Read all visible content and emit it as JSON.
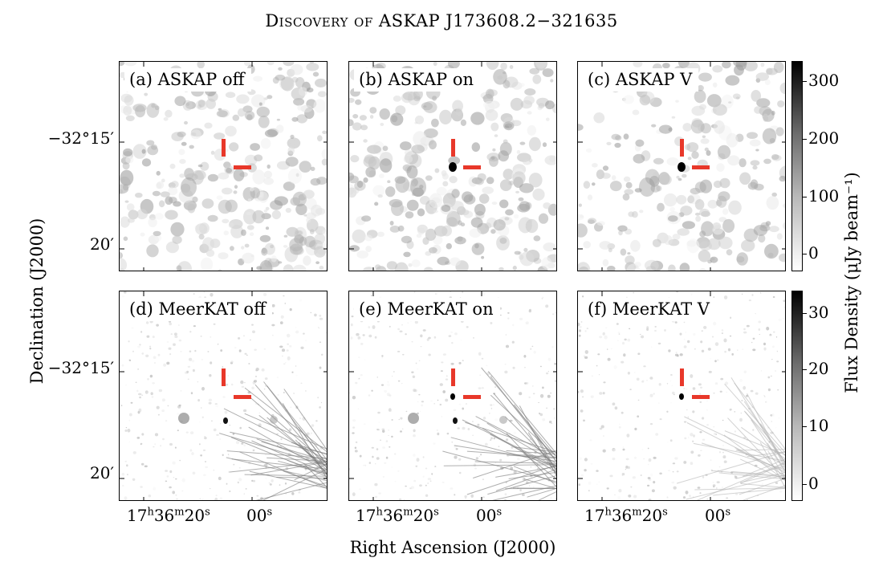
{
  "title": "Discovery of ASKAP J173608.2−321635",
  "panels": [
    {
      "label": "(a) ASKAP off",
      "survey": "ASKAP",
      "mode": "off"
    },
    {
      "label": "(b) ASKAP on",
      "survey": "ASKAP",
      "mode": "on"
    },
    {
      "label": "(c) ASKAP V",
      "survey": "ASKAP",
      "mode": "V"
    },
    {
      "label": "(d) MeerKAT off",
      "survey": "MeerKAT",
      "mode": "off"
    },
    {
      "label": "(e) MeerKAT on",
      "survey": "MeerKAT",
      "mode": "on"
    },
    {
      "label": "(f) MeerKAT V",
      "survey": "MeerKAT",
      "mode": "V"
    }
  ],
  "y_axis": {
    "title": "Declination (J2000)",
    "ticks": [
      "−32°15′",
      "20′"
    ]
  },
  "x_axis": {
    "title": "Right Ascension (J2000)",
    "tick_h": "17",
    "tick_h_unit": "h",
    "tick_m": "36",
    "tick_m_unit": "m",
    "tick_s1": "20",
    "tick_s1_unit": "s",
    "tick_s2": "00",
    "tick_s2_unit": "s"
  },
  "colorbar": {
    "title": "Flux Density (μJy beam⁻¹)",
    "askap_ticks": [
      "300",
      "200",
      "100",
      "0"
    ],
    "meerkat_ticks": [
      "30",
      "20",
      "10",
      "0"
    ]
  },
  "colors": {
    "marker": "#e8382a",
    "frame": "#000000"
  }
}
